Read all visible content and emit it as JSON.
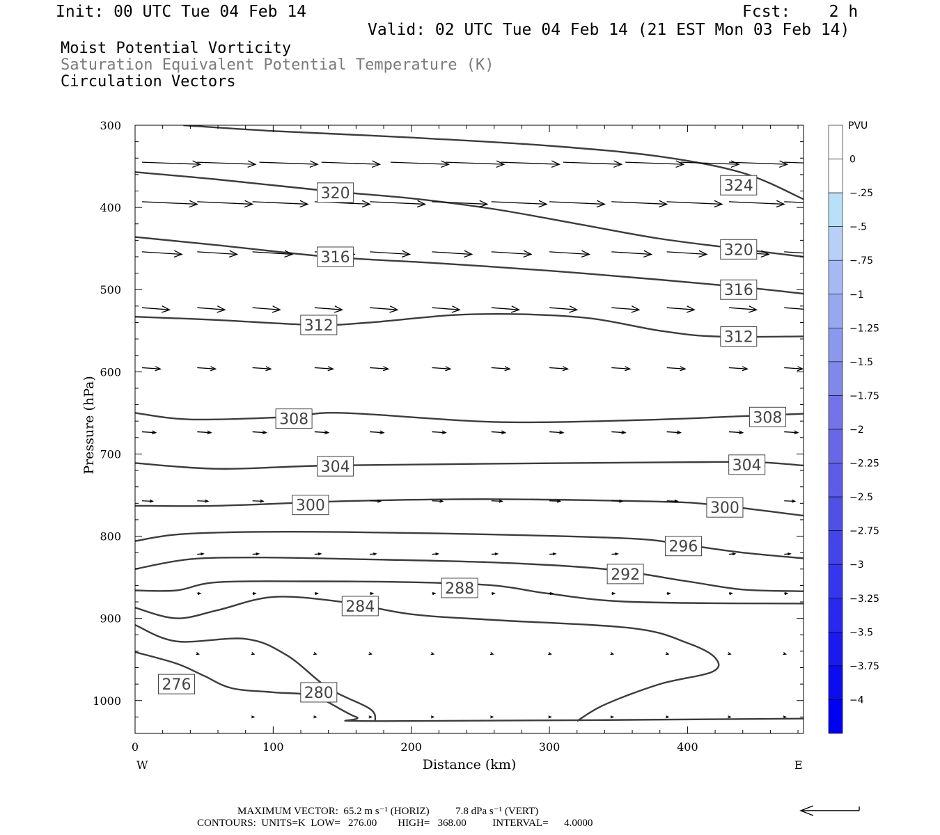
{
  "header": {
    "init": "Init: 00 UTC Tue 04 Feb 14",
    "fcst": "Fcst:    2 h",
    "valid": "Valid: 02 UTC Tue 04 Feb 14 (21 EST Mon 03 Feb 14)",
    "fields": [
      "Moist Potential Vorticity",
      "Saturation Equivalent Potential Temperature (K)",
      "Circulation Vectors"
    ]
  },
  "chart_data": {
    "type": "line",
    "xlabel": "Distance (km)",
    "ylabel": "Pressure (hPa)",
    "xlim": [
      0,
      484
    ],
    "ylim": [
      300,
      1040
    ],
    "y_inverted": true,
    "x_ticks": [
      0,
      100,
      200,
      300,
      400
    ],
    "y_ticks": [
      300,
      400,
      500,
      600,
      700,
      800,
      900,
      1000
    ],
    "x_end_labels": {
      "left": "W",
      "right": "E"
    },
    "contour_units": "K",
    "contours": [
      {
        "level": 324,
        "labeled": true,
        "points": [
          [
            35,
            300
          ],
          [
            100,
            307
          ],
          [
            200,
            315
          ],
          [
            300,
            325
          ],
          [
            380,
            338
          ],
          [
            440,
            358
          ],
          [
            484,
            390
          ]
        ]
      },
      {
        "level": 320,
        "labeled": true,
        "points": [
          [
            0,
            357
          ],
          [
            60,
            366
          ],
          [
            140,
            380
          ],
          [
            200,
            389
          ],
          [
            260,
            402
          ],
          [
            320,
            420
          ],
          [
            380,
            438
          ],
          [
            440,
            451
          ],
          [
            484,
            460
          ]
        ]
      },
      {
        "level": 316,
        "labeled": true,
        "points": [
          [
            0,
            436
          ],
          [
            60,
            446
          ],
          [
            140,
            460
          ],
          [
            220,
            468
          ],
          [
            300,
            477
          ],
          [
            380,
            488
          ],
          [
            440,
            497
          ],
          [
            484,
            505
          ]
        ]
      },
      {
        "level": 312,
        "labeled": true,
        "points": [
          [
            0,
            533
          ],
          [
            60,
            537
          ],
          [
            130,
            543
          ],
          [
            170,
            540
          ],
          [
            230,
            531
          ],
          [
            280,
            530
          ],
          [
            330,
            535
          ],
          [
            380,
            550
          ],
          [
            420,
            557
          ],
          [
            484,
            557
          ]
        ]
      },
      {
        "level": 308,
        "labeled": true,
        "points": [
          [
            0,
            650
          ],
          [
            40,
            658
          ],
          [
            110,
            655
          ],
          [
            150,
            650
          ],
          [
            260,
            661
          ],
          [
            360,
            659
          ],
          [
            440,
            654
          ],
          [
            484,
            651
          ]
        ]
      },
      {
        "level": 304,
        "labeled": true,
        "points": [
          [
            0,
            711
          ],
          [
            60,
            718
          ],
          [
            140,
            714
          ],
          [
            250,
            712
          ],
          [
            400,
            710
          ],
          [
            450,
            710
          ],
          [
            484,
            714
          ]
        ]
      },
      {
        "level": 300,
        "labeled": true,
        "points": [
          [
            0,
            763
          ],
          [
            60,
            763
          ],
          [
            160,
            757
          ],
          [
            260,
            755
          ],
          [
            380,
            758
          ],
          [
            420,
            762
          ],
          [
            484,
            775
          ]
        ]
      },
      {
        "level": 296,
        "labeled": true,
        "points": [
          [
            0,
            806
          ],
          [
            30,
            798
          ],
          [
            80,
            795
          ],
          [
            150,
            795
          ],
          [
            260,
            798
          ],
          [
            360,
            803
          ],
          [
            400,
            811
          ],
          [
            440,
            820
          ],
          [
            484,
            827
          ]
        ]
      },
      {
        "level": 292,
        "labeled": true,
        "points": [
          [
            0,
            840
          ],
          [
            40,
            828
          ],
          [
            90,
            826
          ],
          [
            160,
            828
          ],
          [
            260,
            832
          ],
          [
            340,
            840
          ],
          [
            400,
            855
          ],
          [
            440,
            865
          ],
          [
            484,
            867
          ]
        ]
      },
      {
        "level": 288,
        "labeled": true,
        "points": [
          [
            0,
            866
          ],
          [
            30,
            866
          ],
          [
            60,
            856
          ],
          [
            130,
            855
          ],
          [
            200,
            856
          ],
          [
            260,
            860
          ],
          [
            300,
            870
          ],
          [
            360,
            880
          ],
          [
            484,
            882
          ]
        ]
      },
      {
        "level": 284,
        "labeled": true,
        "points": [
          [
            0,
            887
          ],
          [
            30,
            900
          ],
          [
            60,
            890
          ],
          [
            100,
            874
          ],
          [
            150,
            880
          ],
          [
            200,
            895
          ],
          [
            260,
            902
          ],
          [
            360,
            912
          ],
          [
            400,
            930
          ],
          [
            420,
            948
          ],
          [
            418,
            965
          ],
          [
            380,
            980
          ],
          [
            340,
            1005
          ],
          [
            320,
            1025
          ]
        ]
      },
      {
        "level": 280,
        "labeled": true,
        "points": [
          [
            0,
            908
          ],
          [
            30,
            928
          ],
          [
            80,
            925
          ],
          [
            110,
            945
          ],
          [
            140,
            985
          ],
          [
            170,
            1010
          ],
          [
            174,
            1025
          ]
        ]
      },
      {
        "level": 276,
        "labeled": true,
        "points": [
          [
            0,
            941
          ],
          [
            30,
            955
          ],
          [
            50,
            970
          ],
          [
            70,
            985
          ],
          [
            100,
            990
          ],
          [
            130,
            995
          ],
          [
            160,
            1020
          ],
          [
            180,
            1025
          ],
          [
            484,
            1022
          ]
        ]
      }
    ],
    "contour_labels": [
      {
        "level": 324,
        "x": 437,
        "p": 373
      },
      {
        "level": 320,
        "x": 145,
        "p": 382
      },
      {
        "level": 320,
        "x": 437,
        "p": 451
      },
      {
        "level": 316,
        "x": 145,
        "p": 460
      },
      {
        "level": 316,
        "x": 437,
        "p": 500
      },
      {
        "level": 312,
        "x": 133,
        "p": 543
      },
      {
        "level": 312,
        "x": 437,
        "p": 557
      },
      {
        "level": 308,
        "x": 115,
        "p": 657
      },
      {
        "level": 308,
        "x": 458,
        "p": 655
      },
      {
        "level": 304,
        "x": 145,
        "p": 715
      },
      {
        "level": 304,
        "x": 443,
        "p": 713
      },
      {
        "level": 300,
        "x": 127,
        "p": 762
      },
      {
        "level": 300,
        "x": 427,
        "p": 765
      },
      {
        "level": 296,
        "x": 397,
        "p": 812
      },
      {
        "level": 292,
        "x": 355,
        "p": 846
      },
      {
        "level": 288,
        "x": 235,
        "p": 863
      },
      {
        "level": 284,
        "x": 163,
        "p": 885
      },
      {
        "level": 280,
        "x": 133,
        "p": 990
      },
      {
        "level": 276,
        "x": 30,
        "p": 980
      }
    ],
    "vector_rows": [
      {
        "p": 345,
        "u": 38,
        "w": 0.5,
        "xs": [
          5,
          45,
          90,
          135,
          185,
          225,
          265,
          310,
          355,
          395,
          430,
          470
        ]
      },
      {
        "p": 393,
        "u": 36,
        "w": 0.6,
        "xs": [
          5,
          45,
          85,
          130,
          170,
          215,
          258,
          300,
          345,
          385,
          430,
          470
        ]
      },
      {
        "p": 454,
        "u": 26,
        "w": 0.6,
        "xs": [
          5,
          45,
          85,
          130,
          170,
          215,
          258,
          300,
          345,
          385,
          430,
          470
        ]
      },
      {
        "p": 522,
        "u": 18,
        "w": 0.5,
        "xs": [
          5,
          45,
          85,
          130,
          170,
          215,
          258,
          300,
          345,
          385,
          430,
          470
        ]
      },
      {
        "p": 595,
        "u": 12,
        "w": 0.3,
        "xs": [
          5,
          45,
          85,
          130,
          170,
          215,
          258,
          300,
          345,
          385,
          430,
          470
        ]
      },
      {
        "p": 673,
        "u": 9,
        "w": 0.2,
        "xs": [
          5,
          45,
          85,
          130,
          170,
          215,
          258,
          300,
          345,
          385,
          430,
          470
        ]
      },
      {
        "p": 757,
        "u": 7,
        "w": 0.1,
        "xs": [
          5,
          45,
          85,
          130,
          170,
          215,
          258,
          300,
          345,
          385,
          430,
          470
        ]
      },
      {
        "p": 822,
        "u": 4,
        "w": -0.1,
        "xs": [
          45,
          85,
          130,
          170,
          215,
          258,
          300,
          345,
          385,
          430,
          470
        ]
      },
      {
        "p": 870,
        "u": 2,
        "w": -0.1,
        "xs": [
          45,
          85,
          130,
          170,
          215,
          258,
          300,
          345,
          385,
          430,
          470
        ]
      },
      {
        "p": 943,
        "u": 1,
        "w": 0.1,
        "xs": [
          45,
          85,
          130,
          170,
          215,
          258,
          300,
          345,
          385,
          430,
          470
        ]
      },
      {
        "p": 1020,
        "u": 1,
        "w": 0.0,
        "xs": [
          85,
          130,
          170,
          215,
          258,
          300,
          345,
          385,
          430,
          470
        ]
      }
    ],
    "colorbar": {
      "units": "PVU",
      "labels": [
        "0",
        "-.25",
        "-.5",
        "-.75",
        "-1",
        "-1.25",
        "-1.5",
        "-1.75",
        "-2",
        "-2.25",
        "-2.5",
        "-2.75",
        "-3",
        "-3.25",
        "-3.5",
        "-3.75",
        "-4"
      ],
      "colors": [
        "#ffffff",
        "#ffffff",
        "#b8e0f8",
        "#b8d0f8",
        "#a8b8f4",
        "#98a8f0",
        "#8c98ec",
        "#8088ea",
        "#7474e8",
        "#6868e6",
        "#5c5ce6",
        "#5050e6",
        "#4444ea",
        "#3636ec",
        "#2828ee",
        "#1a1af0",
        "#0c0cf2",
        "#0000f4"
      ]
    }
  },
  "footer": {
    "line1": "MAXIMUM VECTOR:  65.2 m s⁻¹ (HORIZ)          7.8 dPa s⁻¹ (VERT)",
    "line2": "CONTOURS:  UNITS=K  LOW=   276.00        HIGH=   368.00          INTERVAL=      4.0000"
  }
}
